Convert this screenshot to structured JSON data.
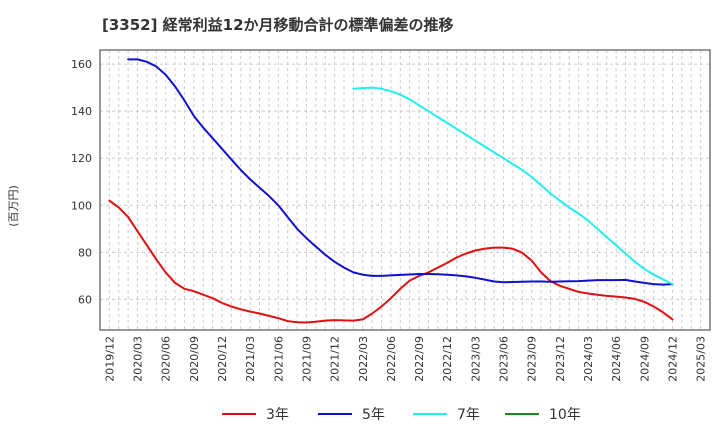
{
  "chart_data": {
    "type": "line",
    "title": "[3352]  経常利益12か月移動合計の標準偏差の推移",
    "ylabel": "(百万円)",
    "xlabel": "",
    "ylim": [
      47,
      166
    ],
    "yticks": [
      60,
      80,
      100,
      120,
      140,
      160
    ],
    "x_ticks": [
      "2019/12",
      "2020/03",
      "2020/06",
      "2020/09",
      "2020/12",
      "2021/03",
      "2021/06",
      "2021/09",
      "2021/12",
      "2022/03",
      "2022/06",
      "2022/09",
      "2022/12",
      "2023/03",
      "2023/06",
      "2023/09",
      "2023/12",
      "2024/03",
      "2024/06",
      "2024/09",
      "2024/12",
      "2025/03"
    ],
    "grid": true,
    "legend_position": "bottom",
    "series": [
      {
        "name": "3年",
        "color": "#dd1111",
        "x": [
          "2019/12",
          "2020/01",
          "2020/02",
          "2020/03",
          "2020/04",
          "2020/05",
          "2020/06",
          "2020/07",
          "2020/08",
          "2020/09",
          "2020/10",
          "2020/11",
          "2020/12",
          "2021/01",
          "2021/02",
          "2021/03",
          "2021/04",
          "2021/05",
          "2021/06",
          "2021/07",
          "2021/08",
          "2021/09",
          "2021/10",
          "2021/11",
          "2021/12",
          "2022/01",
          "2022/02",
          "2022/03",
          "2022/04",
          "2022/05",
          "2022/06",
          "2022/07",
          "2022/08",
          "2022/09",
          "2022/10",
          "2022/11",
          "2022/12",
          "2023/01",
          "2023/02",
          "2023/03",
          "2023/04",
          "2023/05",
          "2023/06",
          "2023/07",
          "2023/08",
          "2023/09",
          "2023/10",
          "2023/11",
          "2023/12",
          "2024/01",
          "2024/02",
          "2024/03",
          "2024/04",
          "2024/05",
          "2024/06",
          "2024/07",
          "2024/08",
          "2024/09",
          "2024/10",
          "2024/11",
          "2024/12"
        ],
        "values": [
          102,
          99,
          95,
          89,
          83,
          77,
          71.5,
          67,
          64.5,
          63.5,
          62,
          60.5,
          58.5,
          57,
          55.8,
          54.8,
          54,
          53,
          52,
          50.8,
          50.3,
          50.2,
          50.5,
          51,
          51.2,
          51.1,
          51,
          51.5,
          54,
          57,
          60.5,
          64.5,
          68,
          70,
          71.5,
          73.5,
          75.5,
          77.8,
          79.5,
          80.8,
          81.6,
          82,
          82,
          81.5,
          79.8,
          76.5,
          71.5,
          67.8,
          65.8,
          64.5,
          63.2,
          62.5,
          62,
          61.5,
          61.2,
          60.8,
          60.2,
          59,
          57,
          54.5,
          51.5
        ]
      },
      {
        "name": "5年",
        "color": "#1111cc",
        "x": [
          "2020/02",
          "2020/03",
          "2020/04",
          "2020/05",
          "2020/06",
          "2020/07",
          "2020/08",
          "2020/09",
          "2020/10",
          "2020/11",
          "2020/12",
          "2021/01",
          "2021/02",
          "2021/03",
          "2021/04",
          "2021/05",
          "2021/06",
          "2021/07",
          "2021/08",
          "2021/09",
          "2021/10",
          "2021/11",
          "2021/12",
          "2022/01",
          "2022/02",
          "2022/03",
          "2022/04",
          "2022/05",
          "2022/06",
          "2022/07",
          "2022/08",
          "2022/09",
          "2022/10",
          "2022/11",
          "2022/12",
          "2023/01",
          "2023/02",
          "2023/03",
          "2023/04",
          "2023/05",
          "2023/06",
          "2023/07",
          "2023/08",
          "2023/09",
          "2023/10",
          "2023/11",
          "2023/12",
          "2024/01",
          "2024/02",
          "2024/03",
          "2024/04",
          "2024/05",
          "2024/06",
          "2024/07",
          "2024/08",
          "2024/09",
          "2024/10",
          "2024/11",
          "2024/12"
        ],
        "values": [
          162,
          162,
          161,
          159,
          155.5,
          150.5,
          144.5,
          138,
          133,
          128.5,
          124,
          119.5,
          115,
          111,
          107.5,
          104,
          100,
          95,
          90,
          86,
          82.5,
          79,
          76,
          73.5,
          71.5,
          70.5,
          70,
          70,
          70.2,
          70.4,
          70.6,
          70.8,
          70.8,
          70.7,
          70.5,
          70.2,
          69.8,
          69.2,
          68.4,
          67.6,
          67.3,
          67.4,
          67.5,
          67.6,
          67.6,
          67.5,
          67.6,
          67.7,
          67.8,
          68,
          68.2,
          68.2,
          68.2,
          68.3,
          67.6,
          67,
          66.5,
          66.3,
          66.5
        ]
      },
      {
        "name": "7年",
        "color": "#22eeee",
        "x": [
          "2022/02",
          "2022/03",
          "2022/04",
          "2022/05",
          "2022/06",
          "2022/07",
          "2022/08",
          "2022/09",
          "2022/10",
          "2022/11",
          "2022/12",
          "2023/01",
          "2023/02",
          "2023/03",
          "2023/04",
          "2023/05",
          "2023/06",
          "2023/07",
          "2023/08",
          "2023/09",
          "2023/10",
          "2023/11",
          "2023/12",
          "2024/01",
          "2024/02",
          "2024/03",
          "2024/04",
          "2024/05",
          "2024/06",
          "2024/07",
          "2024/08",
          "2024/09",
          "2024/10",
          "2024/11",
          "2024/12"
        ],
        "values": [
          149.5,
          149.8,
          150,
          149.5,
          148.5,
          147,
          145,
          142.5,
          140,
          137.5,
          135,
          132.5,
          130,
          127.5,
          125,
          122.5,
          120,
          117.5,
          115,
          112,
          108.5,
          105,
          102,
          99,
          96.5,
          93.5,
          90,
          86.5,
          83,
          79.5,
          76,
          73,
          70.5,
          68.5,
          66.5
        ]
      },
      {
        "name": "10年",
        "color": "#228822",
        "x": [],
        "values": []
      }
    ]
  }
}
